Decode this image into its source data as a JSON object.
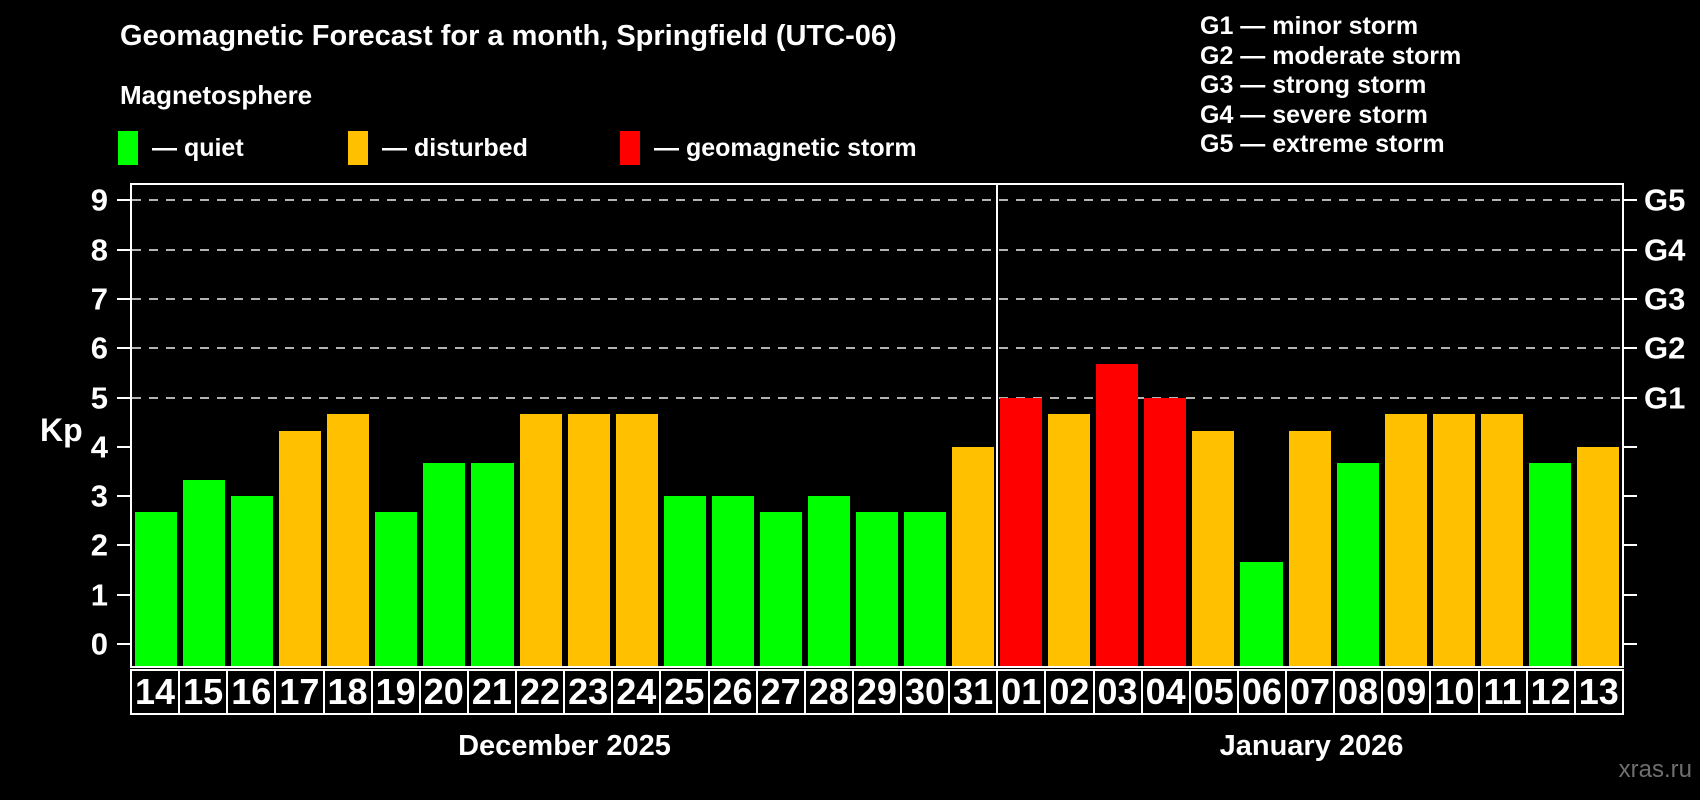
{
  "header": {
    "title": "Geomagnetic Forecast for a month, Springfield (UTC-06)",
    "subtitle": "Magnetosphere"
  },
  "condition_legend": {
    "items": [
      {
        "key": "quiet",
        "color": "#00ff00",
        "text": "— quiet"
      },
      {
        "key": "disturbed",
        "color": "#ffc000",
        "text": "— disturbed"
      },
      {
        "key": "storm",
        "color": "#ff0000",
        "text": "— geomagnetic storm"
      }
    ]
  },
  "storm_scale_legend": {
    "items": [
      {
        "code": "G1",
        "text": "G1 — minor storm"
      },
      {
        "code": "G2",
        "text": "G2 — moderate storm"
      },
      {
        "code": "G3",
        "text": "G3 — strong storm"
      },
      {
        "code": "G4",
        "text": "G4 — severe storm"
      },
      {
        "code": "G5",
        "text": "G5 — extreme storm"
      }
    ]
  },
  "chart_data": {
    "type": "bar",
    "title": "Geomagnetic Forecast for a month, Springfield (UTC-06)",
    "ylabel": "Kp",
    "ylim": [
      0,
      9
    ],
    "y_ticks": [
      0,
      1,
      2,
      3,
      4,
      5,
      6,
      7,
      8,
      9
    ],
    "gridline_kp": [
      5,
      6,
      7,
      8,
      9
    ],
    "grid": "dashed, horizontal, at G-storm levels only",
    "legend_position": "top-left",
    "right_axis_labels": [
      {
        "label": "G1",
        "kp": 5
      },
      {
        "label": "G2",
        "kp": 6
      },
      {
        "label": "G3",
        "kp": 7
      },
      {
        "label": "G4",
        "kp": 8
      },
      {
        "label": "G5",
        "kp": 9
      }
    ],
    "status_colors": {
      "quiet": "#00ff00",
      "disturbed": "#ffc000",
      "storm": "#ff0000"
    },
    "months": [
      {
        "name": "December 2025",
        "days": [
          {
            "day": "14",
            "kp": 2.67,
            "status": "quiet"
          },
          {
            "day": "15",
            "kp": 3.33,
            "status": "quiet"
          },
          {
            "day": "16",
            "kp": 3.0,
            "status": "quiet"
          },
          {
            "day": "17",
            "kp": 4.33,
            "status": "disturbed"
          },
          {
            "day": "18",
            "kp": 4.67,
            "status": "disturbed"
          },
          {
            "day": "19",
            "kp": 2.67,
            "status": "quiet"
          },
          {
            "day": "20",
            "kp": 3.67,
            "status": "quiet"
          },
          {
            "day": "21",
            "kp": 3.67,
            "status": "quiet"
          },
          {
            "day": "22",
            "kp": 4.67,
            "status": "disturbed"
          },
          {
            "day": "23",
            "kp": 4.67,
            "status": "disturbed"
          },
          {
            "day": "24",
            "kp": 4.67,
            "status": "disturbed"
          },
          {
            "day": "25",
            "kp": 3.0,
            "status": "quiet"
          },
          {
            "day": "26",
            "kp": 3.0,
            "status": "quiet"
          },
          {
            "day": "27",
            "kp": 2.67,
            "status": "quiet"
          },
          {
            "day": "28",
            "kp": 3.0,
            "status": "quiet"
          },
          {
            "day": "29",
            "kp": 2.67,
            "status": "quiet"
          },
          {
            "day": "30",
            "kp": 2.67,
            "status": "quiet"
          },
          {
            "day": "31",
            "kp": 4.0,
            "status": "disturbed"
          }
        ]
      },
      {
        "name": "January 2026",
        "days": [
          {
            "day": "01",
            "kp": 5.0,
            "status": "storm"
          },
          {
            "day": "02",
            "kp": 4.67,
            "status": "disturbed"
          },
          {
            "day": "03",
            "kp": 5.67,
            "status": "storm"
          },
          {
            "day": "04",
            "kp": 5.0,
            "status": "storm"
          },
          {
            "day": "05",
            "kp": 4.33,
            "status": "disturbed"
          },
          {
            "day": "06",
            "kp": 1.67,
            "status": "quiet"
          },
          {
            "day": "07",
            "kp": 4.33,
            "status": "disturbed"
          },
          {
            "day": "08",
            "kp": 3.67,
            "status": "quiet"
          },
          {
            "day": "09",
            "kp": 4.67,
            "status": "disturbed"
          },
          {
            "day": "10",
            "kp": 4.67,
            "status": "disturbed"
          },
          {
            "day": "11",
            "kp": 4.67,
            "status": "disturbed"
          },
          {
            "day": "12",
            "kp": 3.67,
            "status": "quiet"
          },
          {
            "day": "13",
            "kp": 4.0,
            "status": "disturbed"
          }
        ]
      }
    ]
  },
  "watermark": "xras.ru"
}
